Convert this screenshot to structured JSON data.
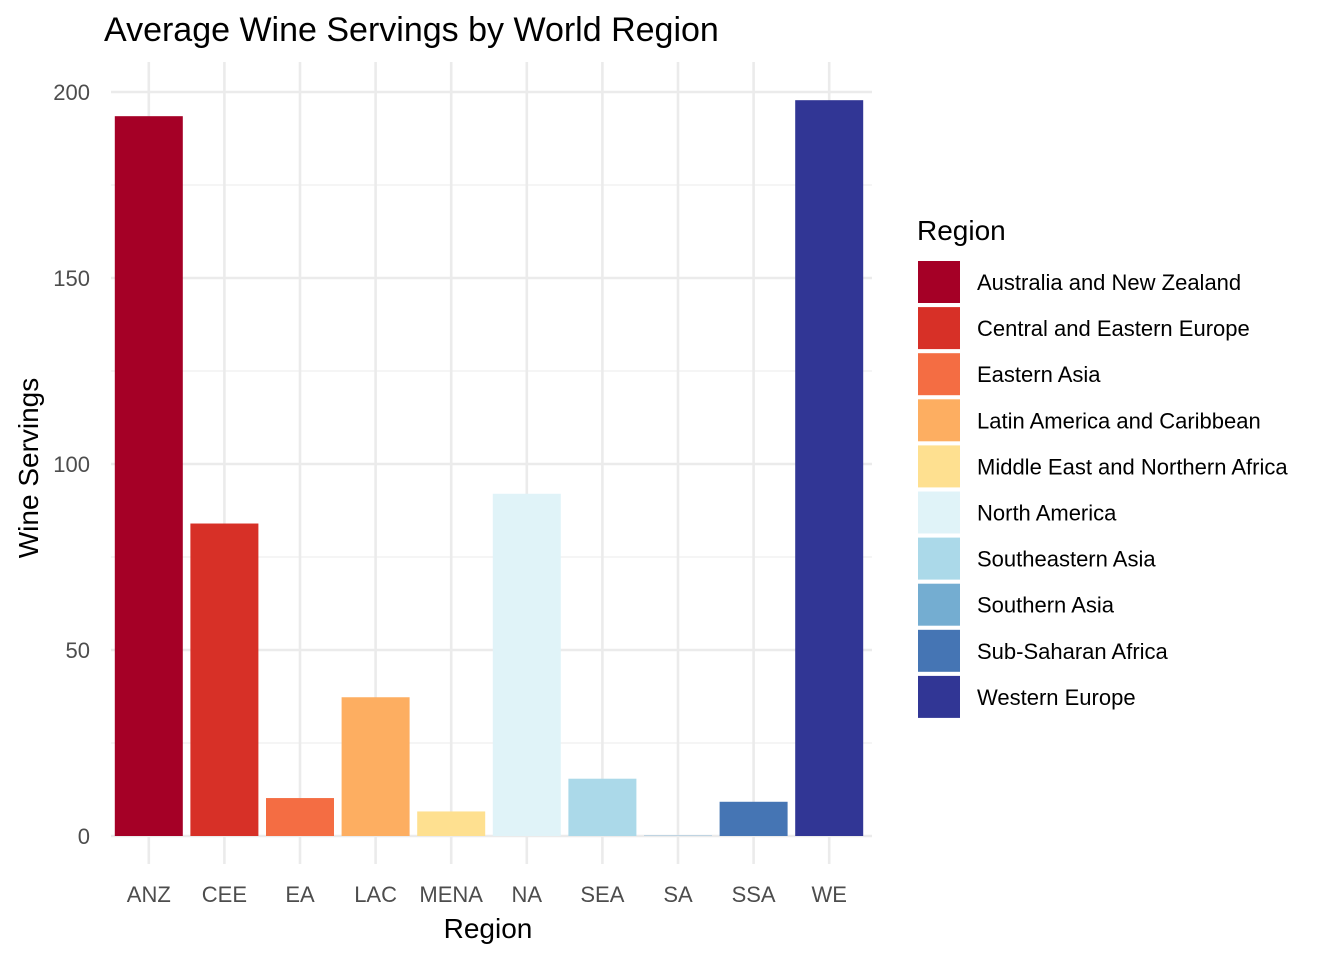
{
  "chart_data": {
    "type": "bar",
    "title": "Average Wine Servings by World Region",
    "xlabel": "Region",
    "ylabel": "Wine Servings",
    "categories": [
      "ANZ",
      "CEE",
      "EA",
      "LAC",
      "MENA",
      "NA",
      "SEA",
      "SA",
      "SSA",
      "WE"
    ],
    "values": [
      193.5,
      84,
      10.2,
      37.3,
      6.6,
      92,
      15.4,
      0.1,
      9.2,
      197.8
    ],
    "ylim": [
      0,
      207
    ],
    "yticks": [
      0,
      50,
      100,
      150,
      200
    ],
    "grid": true,
    "legend": {
      "title": "Region",
      "placement": "right",
      "entries": [
        "Australia and New Zealand",
        "Central and Eastern Europe",
        "Eastern Asia",
        "Latin America and Caribbean",
        "Middle East and Northern Africa",
        "North America",
        "Southeastern Asia",
        "Southern Asia",
        "Sub-Saharan Africa",
        "Western Europe"
      ]
    },
    "colors": [
      "#a50026",
      "#d73027",
      "#f46d43",
      "#fdae61",
      "#fee090",
      "#e0f3f8",
      "#abd9e9",
      "#74add1",
      "#4575b4",
      "#313695"
    ]
  }
}
